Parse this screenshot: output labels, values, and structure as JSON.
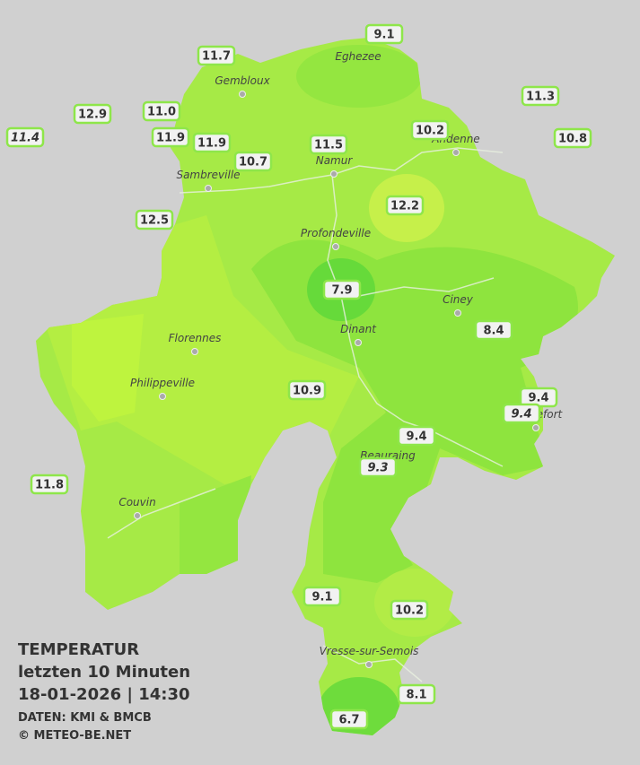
{
  "title": {
    "lines": [
      "TEMPERATUR",
      "letzten 10 Minuten",
      "18-01-2026 | 14:30"
    ],
    "credits": [
      "DATEN: KMI & BMCB",
      "© METEO-BE.NET"
    ]
  },
  "towns": [
    "Eghezee",
    "Gembloux",
    "Andenne",
    "Namur",
    "Sambreville",
    "Profondeville",
    "Ciney",
    "Dinant",
    "Florennes",
    "Philippeville",
    "Rochefort",
    "Beauraing",
    "Couvin",
    "Vresse-sur-Semois"
  ],
  "stations": [
    {
      "value": 9.1
    },
    {
      "value": 11.7
    },
    {
      "value": 11.3
    },
    {
      "value": 12.9
    },
    {
      "value": 11,
      "label": "11.0"
    },
    {
      "value": 11.4,
      "italic": true
    },
    {
      "value": 11.9
    },
    {
      "value": 11.9
    },
    {
      "value": 11.5
    },
    {
      "value": 10.2
    },
    {
      "value": 10.8
    },
    {
      "value": 10.7
    },
    {
      "value": 12.2
    },
    {
      "value": 12.5
    },
    {
      "value": 7.9
    },
    {
      "value": 8.4
    },
    {
      "value": 10.9
    },
    {
      "value": 9.4
    },
    {
      "value": 9.4,
      "italic": true
    },
    {
      "value": 9.4
    },
    {
      "value": 9.3,
      "italic": true
    },
    {
      "value": 11.8
    },
    {
      "value": 9.1
    },
    {
      "value": 10.2
    },
    {
      "value": 8.1
    },
    {
      "value": 6.7
    }
  ]
}
